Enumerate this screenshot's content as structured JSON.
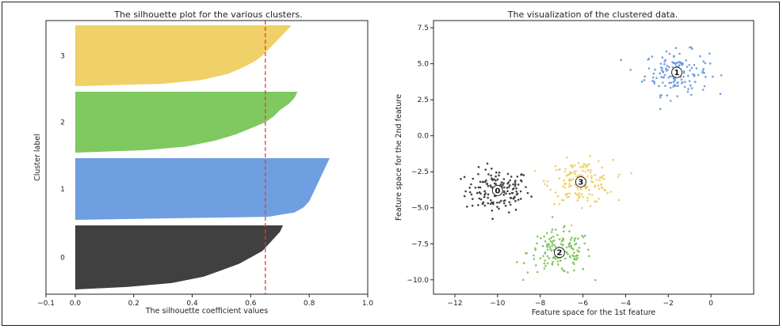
{
  "colors": {
    "cluster_0": "#404040",
    "cluster_1": "#6f9fe0",
    "cluster_2": "#80c860",
    "cluster_3": "#f0d068",
    "avg_line": "#e04030"
  },
  "chart_data": [
    {
      "type": "area",
      "title": "The silhouette plot for the various clusters.",
      "xlabel": "The silhouette coefficient values",
      "ylabel": "Cluster label",
      "xlim": [
        -0.1,
        1.0
      ],
      "xticks": [
        "−0.1",
        "0.0",
        "0.2",
        "0.4",
        "0.6",
        "0.8",
        "1.0"
      ],
      "xtick_values": [
        -0.1,
        0.0,
        0.2,
        0.4,
        0.6,
        0.8,
        1.0
      ],
      "average_silhouette": 0.65,
      "grid": false,
      "clusters": [
        {
          "label": "0",
          "color": "#404040",
          "max": 0.71,
          "min": 0.0,
          "profile": [
            [
              0,
              0.71
            ],
            [
              0.1,
              0.7
            ],
            [
              0.2,
              0.68
            ],
            [
              0.3,
              0.66
            ],
            [
              0.4,
              0.64
            ],
            [
              0.5,
              0.6
            ],
            [
              0.6,
              0.56
            ],
            [
              0.7,
              0.5
            ],
            [
              0.8,
              0.44
            ],
            [
              0.9,
              0.33
            ],
            [
              0.96,
              0.18
            ],
            [
              1,
              0.0
            ]
          ]
        },
        {
          "label": "1",
          "color": "#6f9fe0",
          "max": 0.87,
          "min": 0.0,
          "profile": [
            [
              0,
              0.87
            ],
            [
              0.1,
              0.86
            ],
            [
              0.2,
              0.85
            ],
            [
              0.3,
              0.84
            ],
            [
              0.4,
              0.83
            ],
            [
              0.5,
              0.82
            ],
            [
              0.6,
              0.81
            ],
            [
              0.7,
              0.8
            ],
            [
              0.8,
              0.78
            ],
            [
              0.88,
              0.75
            ],
            [
              0.95,
              0.66
            ],
            [
              1,
              0.0
            ]
          ]
        },
        {
          "label": "2",
          "color": "#80c860",
          "max": 0.76,
          "min": 0.0,
          "profile": [
            [
              0,
              0.76
            ],
            [
              0.1,
              0.75
            ],
            [
              0.2,
              0.73
            ],
            [
              0.3,
              0.7
            ],
            [
              0.4,
              0.68
            ],
            [
              0.5,
              0.65
            ],
            [
              0.6,
              0.6
            ],
            [
              0.7,
              0.55
            ],
            [
              0.8,
              0.48
            ],
            [
              0.9,
              0.38
            ],
            [
              0.96,
              0.24
            ],
            [
              1,
              0.0
            ]
          ]
        },
        {
          "label": "3",
          "color": "#f0d068",
          "max": 0.74,
          "min": 0.0,
          "profile": [
            [
              0,
              0.74
            ],
            [
              0.1,
              0.72
            ],
            [
              0.2,
              0.7
            ],
            [
              0.3,
              0.68
            ],
            [
              0.4,
              0.66
            ],
            [
              0.5,
              0.64
            ],
            [
              0.6,
              0.61
            ],
            [
              0.7,
              0.57
            ],
            [
              0.8,
              0.52
            ],
            [
              0.9,
              0.43
            ],
            [
              0.96,
              0.3
            ],
            [
              1,
              0.0
            ]
          ]
        }
      ]
    },
    {
      "type": "scatter",
      "title": "The visualization of the clustered data.",
      "xlabel": "Feature space for the 1st feature",
      "ylabel": "Feature space for the 2nd feature",
      "xlim": [
        -13,
        2
      ],
      "ylim": [
        -11,
        8
      ],
      "xticks": [
        "−12",
        "−10",
        "−8",
        "−6",
        "−4",
        "−2",
        "0"
      ],
      "xtick_values": [
        -12,
        -10,
        -8,
        -6,
        -4,
        -2,
        0
      ],
      "yticks": [
        "−10.0",
        "−7.5",
        "−5.0",
        "−2.5",
        "0.0",
        "2.5",
        "5.0",
        "7.5"
      ],
      "ytick_values": [
        -10,
        -7.5,
        -5,
        -2.5,
        0,
        2.5,
        5,
        7.5
      ],
      "grid": false,
      "clusters": [
        {
          "label": "0",
          "color": "#404040",
          "center": [
            -10.0,
            -3.8
          ],
          "spread": [
            0.75,
            0.75
          ],
          "count": 150
        },
        {
          "label": "1",
          "color": "#6f9fe0",
          "center": [
            -1.6,
            4.4
          ],
          "spread": [
            0.75,
            0.75
          ],
          "count": 150
        },
        {
          "label": "2",
          "color": "#80c860",
          "center": [
            -7.1,
            -8.1
          ],
          "spread": [
            0.75,
            0.75
          ],
          "count": 150
        },
        {
          "label": "3",
          "color": "#f0d068",
          "center": [
            -6.1,
            -3.2
          ],
          "spread": [
            0.75,
            0.75
          ],
          "count": 150
        }
      ]
    }
  ]
}
